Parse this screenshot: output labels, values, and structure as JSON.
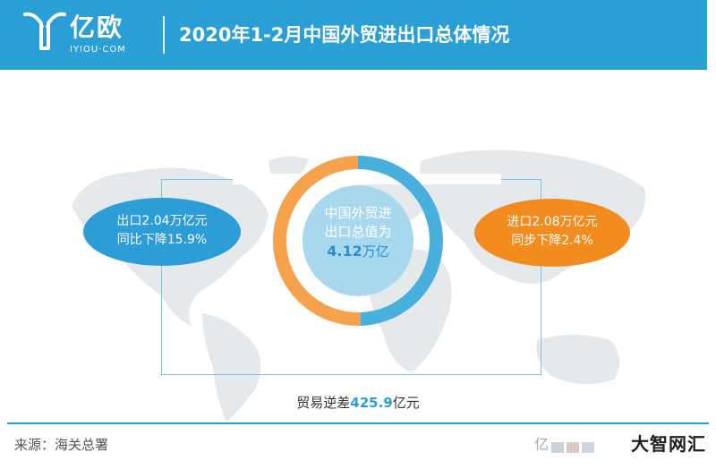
{
  "header": {
    "logo_cn": "亿欧",
    "logo_en": "IYIOU·COM",
    "title": "2020年1-2月中国外贸进出口总体情况"
  },
  "center": {
    "line1": "中国外贸进",
    "line2": "出口总值为",
    "value": "4.12",
    "unit": "万亿"
  },
  "export_bubble": {
    "line1": "出口2.04万亿元",
    "line2": "同比下降15.9%"
  },
  "import_bubble": {
    "line1": "进口2.08万亿元",
    "line2": "同步下降2.4%"
  },
  "deficit": {
    "prefix": "贸易逆差",
    "value": "425.9",
    "suffix": "亿元"
  },
  "footer": {
    "source": "来源：海关总署",
    "watermark_left": "亿",
    "watermark_right": "大智网汇"
  },
  "colors": {
    "header_blue": "#2a9fd6",
    "export_blue": "#49b0de",
    "import_orange": "#f6a24d",
    "inner_circle": "#a8d8ee",
    "bubble_orange": "#f28c1f"
  },
  "chart_data": {
    "type": "pie",
    "title": "2020年1-2月中国外贸进出口总体情况",
    "categories": [
      "出口",
      "进口"
    ],
    "values": [
      2.04,
      2.08
    ],
    "unit": "万亿元"
  }
}
